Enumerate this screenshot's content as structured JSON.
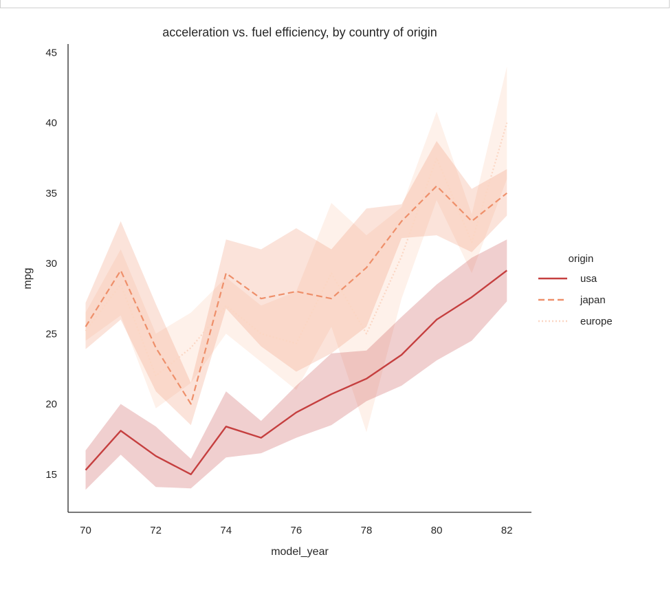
{
  "chart_data": {
    "type": "line",
    "title": "acceleration vs. fuel efficiency, by country of origin",
    "xlabel": "model_year",
    "ylabel": "mpg",
    "xlim": [
      69.5,
      82.7
    ],
    "ylim": [
      12.3,
      45.6
    ],
    "xticks": [
      70,
      72,
      74,
      76,
      78,
      80,
      82
    ],
    "yticks": [
      15,
      20,
      25,
      30,
      35,
      40,
      45
    ],
    "grid": false,
    "legend": {
      "title": "origin",
      "position": "right"
    },
    "x": [
      70,
      71,
      72,
      73,
      74,
      75,
      76,
      77,
      78,
      79,
      80,
      81,
      82
    ],
    "series": [
      {
        "name": "usa",
        "color": "#c53f3f",
        "dash": "solid",
        "band_opacity": 0.25,
        "values": [
          15.3,
          18.1,
          16.3,
          15.0,
          18.4,
          17.6,
          19.4,
          20.7,
          21.8,
          23.5,
          26.0,
          27.6,
          29.5
        ],
        "lower": [
          13.9,
          16.4,
          14.1,
          14.0,
          16.2,
          16.5,
          17.6,
          18.5,
          20.2,
          21.3,
          23.1,
          24.5,
          27.3
        ],
        "upper": [
          16.7,
          20.0,
          18.4,
          16.1,
          20.9,
          18.8,
          21.3,
          23.6,
          23.8,
          26.2,
          28.5,
          30.4,
          31.7
        ]
      },
      {
        "name": "japan",
        "color": "#ee8f6a",
        "dash": "dashed",
        "band_opacity": 0.25,
        "values": [
          25.5,
          29.5,
          24.0,
          20.0,
          29.3,
          27.5,
          28.0,
          27.5,
          29.7,
          33.0,
          35.5,
          33.0,
          35.0
        ],
        "lower": [
          23.9,
          26.0,
          20.9,
          18.5,
          26.8,
          24.1,
          22.3,
          23.6,
          25.5,
          31.8,
          32.0,
          30.8,
          33.4
        ],
        "upper": [
          27.2,
          33.0,
          27.1,
          21.5,
          31.7,
          31.0,
          32.5,
          31.0,
          33.9,
          34.2,
          38.7,
          35.3,
          36.7
        ]
      },
      {
        "name": "europe",
        "color": "#fbd6c3",
        "dash": "dotted",
        "band_opacity": 0.35,
        "values": [
          25.2,
          28.5,
          22.0,
          24.0,
          27.0,
          25.0,
          24.3,
          29.3,
          25.0,
          30.5,
          37.5,
          31.5,
          40.0
        ],
        "lower": [
          24.5,
          26.3,
          19.7,
          21.5,
          25.0,
          23.0,
          21.0,
          25.5,
          18.0,
          27.5,
          34.5,
          29.3,
          36.0
        ],
        "upper": [
          26.5,
          31.0,
          25.0,
          26.5,
          29.0,
          27.0,
          28.0,
          34.3,
          32.0,
          34.0,
          40.8,
          33.5,
          44.0
        ]
      }
    ]
  }
}
